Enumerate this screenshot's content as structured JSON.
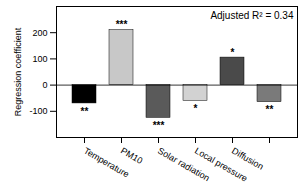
{
  "chart_data": {
    "type": "bar",
    "y_label": "Regression coefficient",
    "annotations": [
      "Adjusted R² = 0.34"
    ],
    "categories": [
      "Temperature",
      "PM10",
      "Solar radiation",
      "Local pressure",
      "Diffusion",
      null
    ],
    "values": [
      -70,
      210,
      -125,
      -60,
      105,
      -65
    ],
    "bar_annotations": [
      "**",
      "***",
      "***",
      "*",
      "*",
      "**"
    ],
    "colors": [
      "#000000",
      "#c8c8c8",
      "#5a5a5a",
      "#d2d2d2",
      "#4a4a4a",
      "#7a7a7a"
    ],
    "ylim": [
      -200,
      300
    ],
    "yticks": [
      -100,
      0,
      100,
      200
    ],
    "grid": false
  }
}
